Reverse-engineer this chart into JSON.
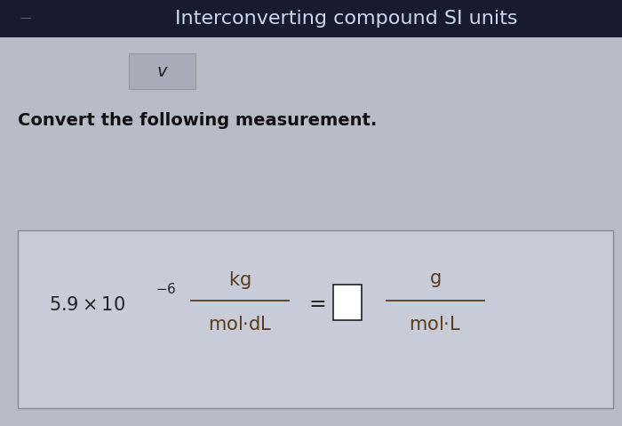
{
  "title": "Interconverting compound SI units",
  "subtitle": "Convert the following measurement.",
  "bg_top": "#1a1a2e",
  "bg_main": "#b8bcc8",
  "bg_box": "#c8ccd8",
  "box_stroke": "#888888",
  "chevron_bg": "#a8acb8",
  "chevron_color": "#222222",
  "title_color": "#c8d8f0",
  "subtitle_color": "#111111",
  "formula_color": "#222222",
  "fraction_color": "#5a3a1a",
  "title_fontsize": 16,
  "subtitle_fontsize": 14,
  "formula_fontsize": 15
}
